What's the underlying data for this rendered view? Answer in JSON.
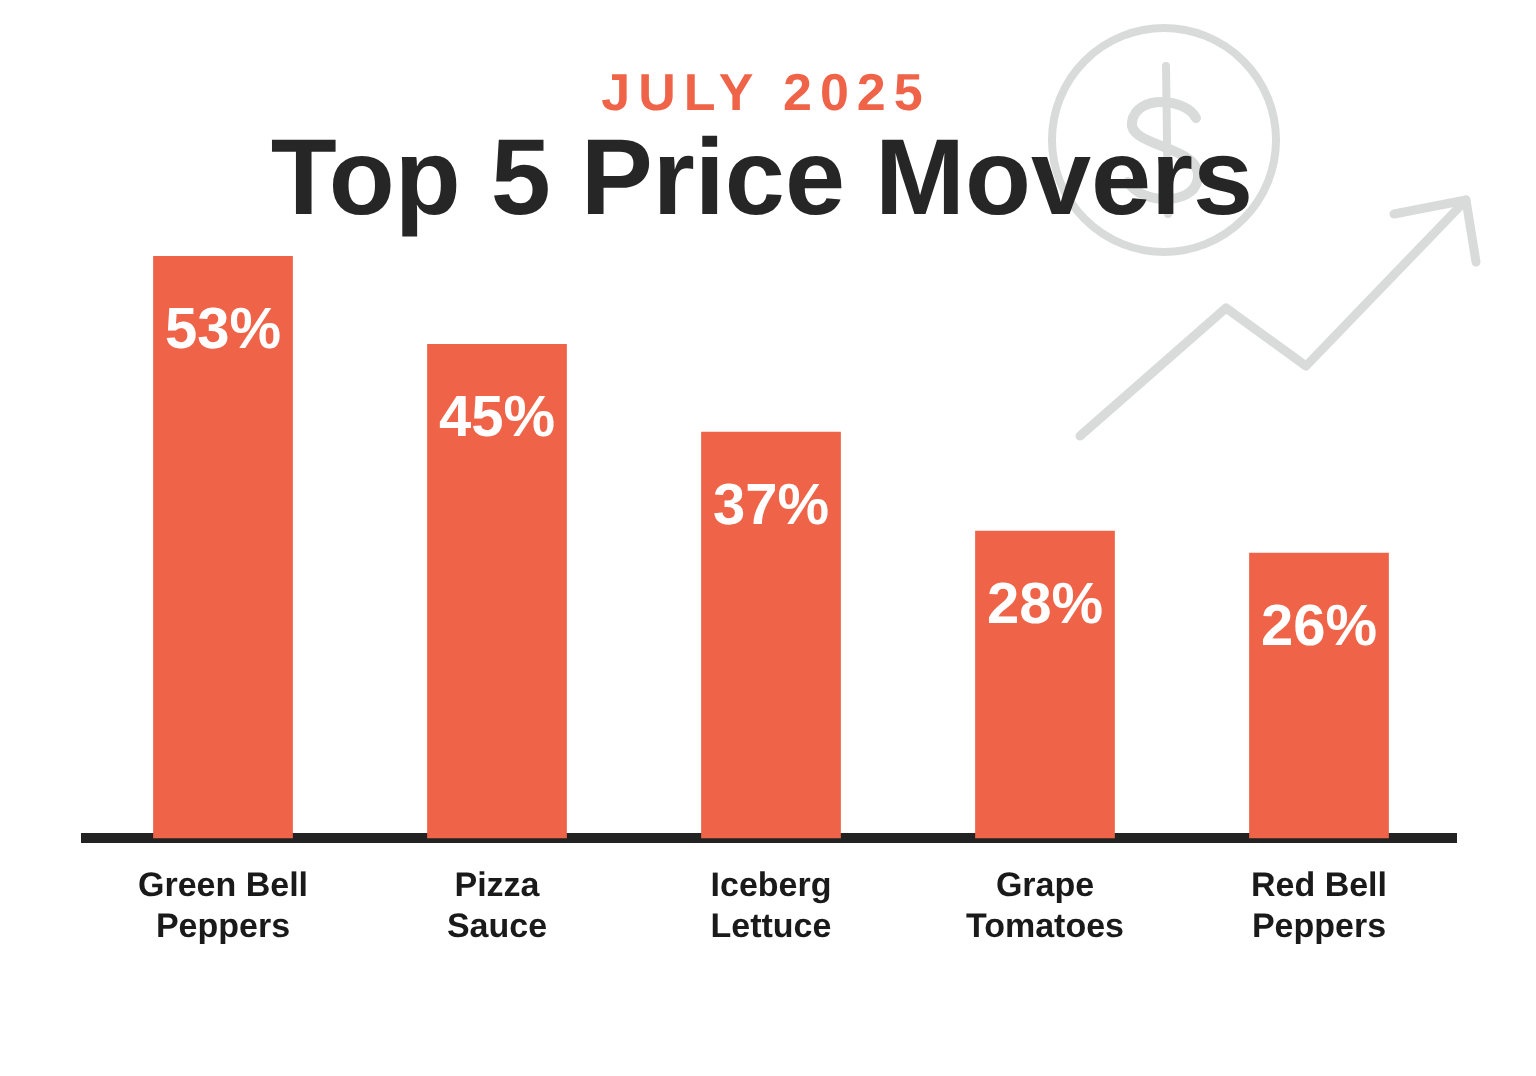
{
  "chart_data": {
    "type": "bar",
    "title": "Top 5 Price Movers",
    "subtitle": "JULY 2025",
    "categories": [
      "Green Bell Peppers",
      "Pizza Sauce",
      "Iceberg Lettuce",
      "Grape Tomatoes",
      "Red Bell Peppers"
    ],
    "values": [
      53,
      45,
      37,
      28,
      26
    ],
    "color": "#ef6449",
    "value_labels": [
      "53%",
      "45%",
      "37%",
      "28%",
      "26%"
    ],
    "tick_labels": "x"
  }
}
